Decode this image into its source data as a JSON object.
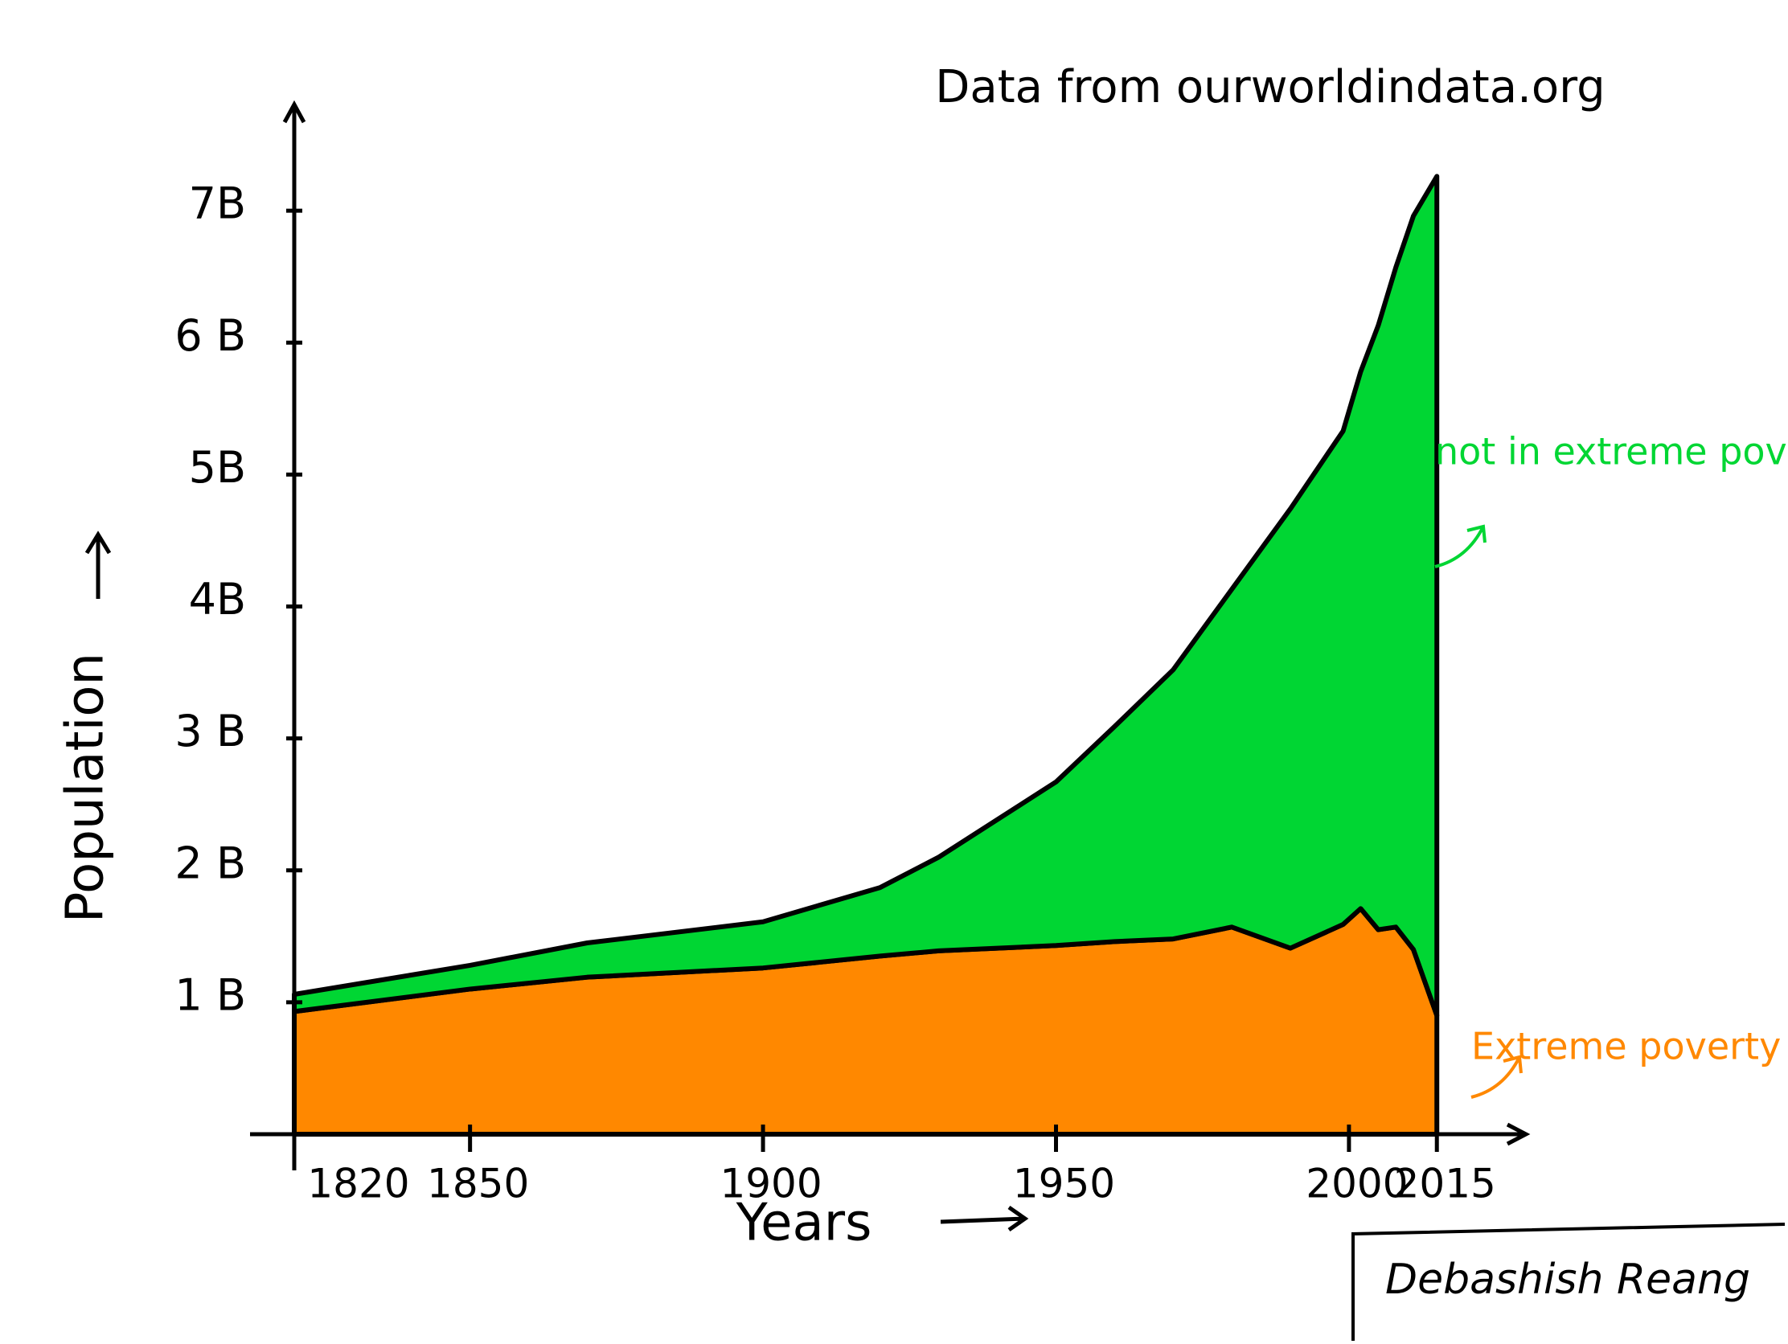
{
  "chart_data": {
    "type": "stacked-area",
    "title": "Data from ourworldindata.org",
    "x_label": "Years",
    "y_label": "Population",
    "x": [
      1820,
      1850,
      1870,
      1900,
      1920,
      1930,
      1950,
      1960,
      1970,
      1980,
      1990,
      1999,
      2002,
      2005,
      2008,
      2011,
      2015
    ],
    "series": [
      {
        "name": "Extreme poverty",
        "color": "#ff8800",
        "values": [
          0.93,
          1.1,
          1.19,
          1.26,
          1.35,
          1.39,
          1.43,
          1.46,
          1.48,
          1.57,
          1.41,
          1.59,
          1.71,
          1.55,
          1.57,
          1.4,
          0.9
        ]
      },
      {
        "name": "not in extreme poverty",
        "color": "#00d633",
        "values": [
          0.13,
          0.18,
          0.26,
          0.35,
          0.52,
          0.71,
          1.24,
          1.63,
          2.04,
          2.56,
          3.33,
          3.74,
          4.07,
          4.58,
          5.0,
          5.56,
          6.36
        ]
      }
    ],
    "xlim": [
      1820,
      2035
    ],
    "xticks": [
      1820,
      1850,
      1900,
      1950,
      2000,
      2015
    ],
    "ylim": [
      0,
      7.5
    ],
    "yticks": [
      {
        "value": 1,
        "label": "1 B"
      },
      {
        "value": 2,
        "label": "2 B"
      },
      {
        "value": 3,
        "label": "3 B"
      },
      {
        "value": 4,
        "label": "4B"
      },
      {
        "value": 5,
        "label": "5B"
      },
      {
        "value": 6,
        "label": "6 B"
      },
      {
        "value": 7,
        "label": "7B"
      }
    ],
    "signature": "Debashish Reang"
  }
}
